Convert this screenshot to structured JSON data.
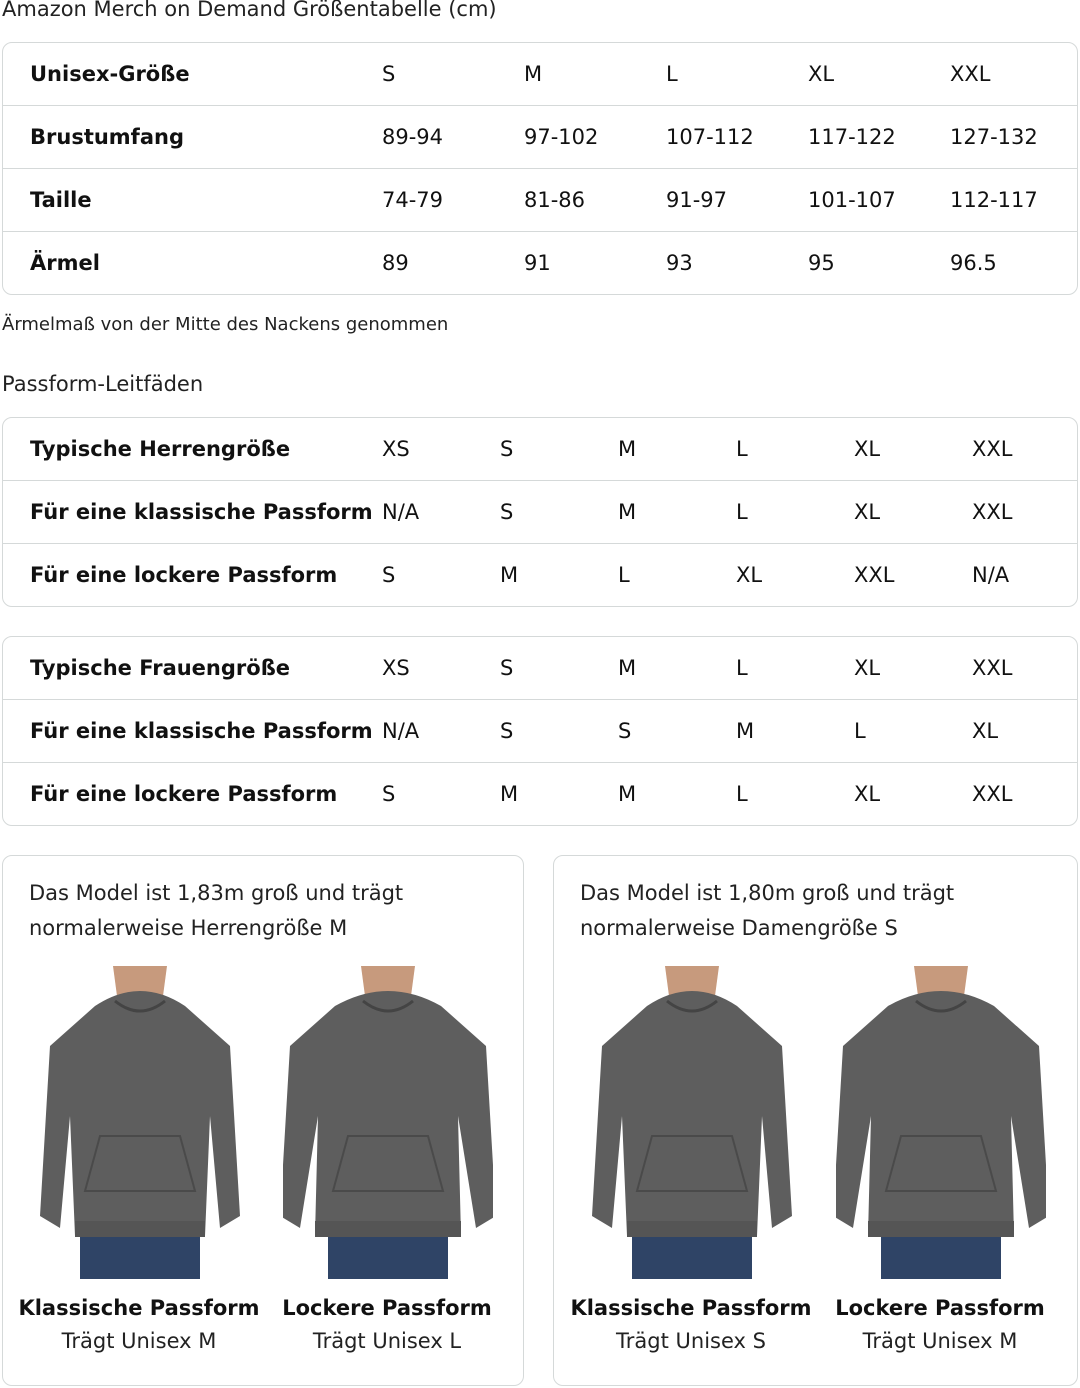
{
  "title": "Amazon Merch on Demand Größentabelle (cm)",
  "size_table": {
    "rows": [
      [
        "Unisex-Größe",
        "S",
        "M",
        "L",
        "XL",
        "XXL"
      ],
      [
        "Brustumfang",
        "89-94",
        "97-102",
        "107-112",
        "117-122",
        "127-132"
      ],
      [
        "Taille",
        "74-79",
        "81-86",
        "91-97",
        "101-107",
        "112-117"
      ],
      [
        "Ärmel",
        "89",
        "91",
        "93",
        "95",
        "96.5"
      ]
    ]
  },
  "note": "Ärmelmaß von der Mitte des Nackens genommen",
  "fit_title": "Passform-Leitfäden",
  "men_table": {
    "rows": [
      [
        "Typische Herrengröße",
        "XS",
        "S",
        "M",
        "L",
        "XL",
        "XXL"
      ],
      [
        "Für eine klassische Passform",
        "N/A",
        "S",
        "M",
        "L",
        "XL",
        "XXL"
      ],
      [
        "Für eine lockere Passform",
        "S",
        "M",
        "L",
        "XL",
        "XXL",
        "N/A"
      ]
    ]
  },
  "women_table": {
    "rows": [
      [
        "Typische Frauengröße",
        "XS",
        "S",
        "M",
        "L",
        "XL",
        "XXL"
      ],
      [
        "Für eine klassische Passform",
        "N/A",
        "S",
        "S",
        "M",
        "L",
        "XL"
      ],
      [
        "Für eine lockere Passform",
        "S",
        "M",
        "M",
        "L",
        "XL",
        "XXL"
      ]
    ]
  },
  "cards": [
    {
      "text_1": "Das Model ist 1,83m groß und trägt",
      "text_2": "normalerweise Herrengröße M",
      "figures": [
        {
          "title": "Klassische Passform",
          "sub": "Trägt Unisex M"
        },
        {
          "title": "Lockere Passform",
          "sub": "Trägt Unisex L"
        }
      ]
    },
    {
      "text_1": "Das Model ist 1,80m groß und trägt",
      "text_2": "normalerweise Damengröße S",
      "figures": [
        {
          "title": "Klassische Passform",
          "sub": "Trägt Unisex S"
        },
        {
          "title": "Lockere Passform",
          "sub": "Trägt Unisex M"
        }
      ]
    }
  ],
  "colors": {
    "hoodie": "#5e5e5e",
    "jeans": "#2f4466",
    "skin": "#c79a7d",
    "border": "#d5d9d9"
  }
}
